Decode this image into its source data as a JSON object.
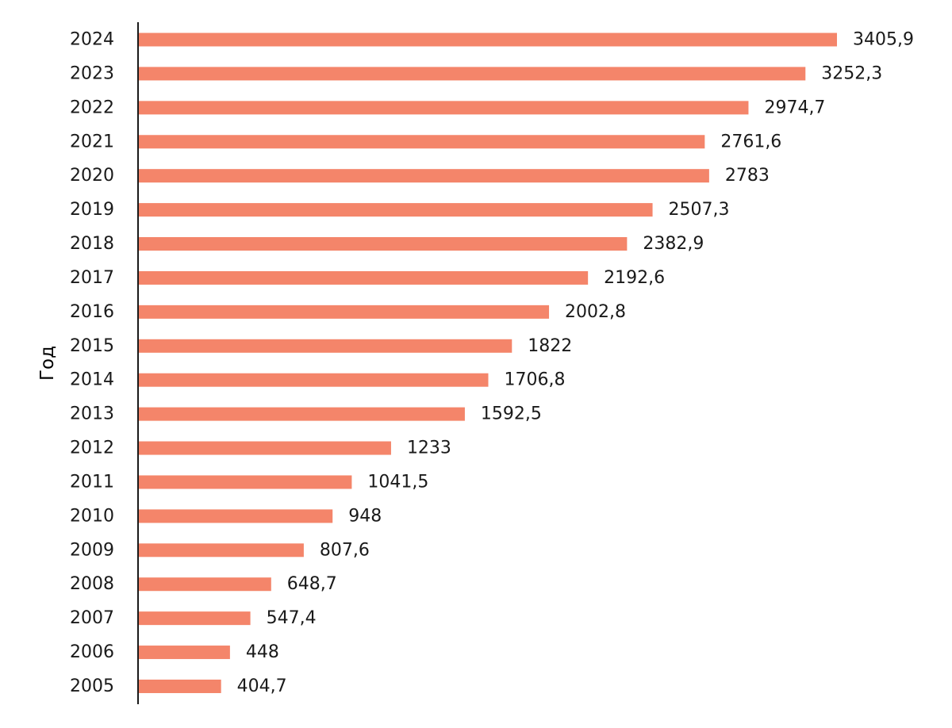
{
  "chart_data": {
    "type": "bar",
    "orientation": "horizontal",
    "ylabel": "Год",
    "xlabel": "",
    "categories": [
      "2024",
      "2023",
      "2022",
      "2021",
      "2020",
      "2019",
      "2018",
      "2017",
      "2016",
      "2015",
      "2014",
      "2013",
      "2012",
      "2011",
      "2010",
      "2009",
      "2008",
      "2007",
      "2006",
      "2005"
    ],
    "values": [
      3405.9,
      3252.3,
      2974.7,
      2761.6,
      2783,
      2507.3,
      2382.9,
      2192.6,
      2002.8,
      1822,
      1706.8,
      1592.5,
      1233,
      1041.5,
      948,
      807.6,
      648.7,
      547.4,
      448,
      404.7
    ],
    "value_labels": [
      "3405,9",
      "3252,3",
      "2974,7",
      "2761,6",
      "2783",
      "2507,3",
      "2382,9",
      "2192,6",
      "2002,8",
      "1822",
      "1706,8",
      "1592,5",
      "1233",
      "1041,5",
      "948",
      "807,6",
      "648,7",
      "547,4",
      "448",
      "404,7"
    ],
    "xlim": [
      0,
      3405.9
    ],
    "grid": false,
    "legend": "none",
    "bar_color": "#f4856a",
    "axis_color": "#1a1a1a",
    "text_color": "#1a1a1a"
  }
}
